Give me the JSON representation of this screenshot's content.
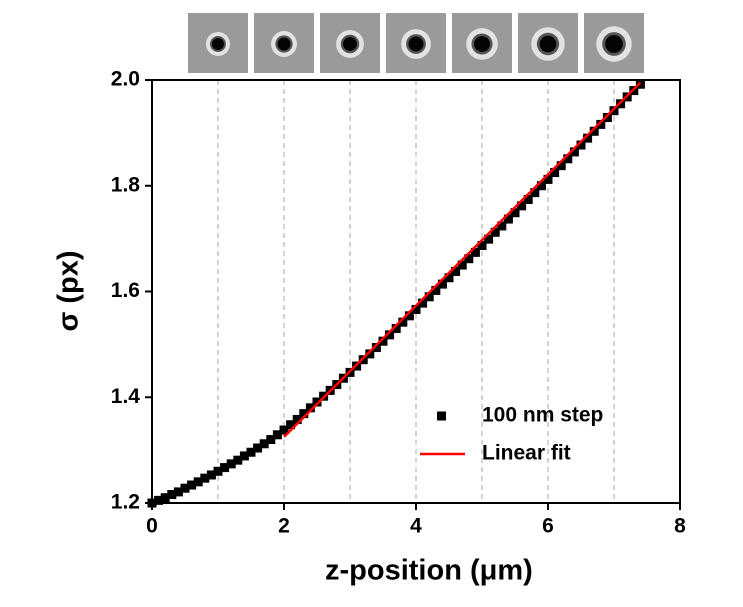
{
  "chart_data": {
    "type": "scatter",
    "xlabel": "z-position (μm)",
    "ylabel": "σ (px)",
    "xlim": [
      0,
      8
    ],
    "ylim": [
      1.2,
      2.0
    ],
    "xticks": [
      0,
      2,
      4,
      6,
      8
    ],
    "yticks": [
      1.2,
      1.4,
      1.6,
      1.8,
      {
        "value": 2.0,
        "label": "2.0"
      }
    ],
    "guide_lines": [
      1,
      2,
      3,
      4,
      5,
      6,
      7
    ],
    "legend": "lower right",
    "series": [
      {
        "name": "100 nm step",
        "type": "scatter",
        "color": "#000000",
        "x": [
          0,
          0.1,
          0.2,
          0.3,
          0.4,
          0.5,
          0.6,
          0.7,
          0.8,
          0.9,
          1.0,
          1.1,
          1.2,
          1.3,
          1.4,
          1.5,
          1.6,
          1.7,
          1.8,
          1.9,
          2.0,
          2.1,
          2.2,
          2.3,
          2.4,
          2.5,
          2.6,
          2.7,
          2.8,
          2.9,
          3.0,
          3.1,
          3.2,
          3.3,
          3.4,
          3.5,
          3.6,
          3.7,
          3.8,
          3.9,
          4.0,
          4.1,
          4.2,
          4.3,
          4.4,
          4.5,
          4.6,
          4.7,
          4.8,
          4.9,
          5.0,
          5.1,
          5.2,
          5.3,
          5.4,
          5.5,
          5.6,
          5.7,
          5.8,
          5.9,
          6.0,
          6.1,
          6.2,
          6.3,
          6.4,
          6.5,
          6.6,
          6.7,
          6.8,
          6.9,
          7.0,
          7.1,
          7.2,
          7.3,
          7.4
        ],
        "values": [
          1.2,
          1.205,
          1.21,
          1.216,
          1.221,
          1.228,
          1.234,
          1.24,
          1.247,
          1.253,
          1.26,
          1.267,
          1.274,
          1.281,
          1.289,
          1.296,
          1.304,
          1.312,
          1.32,
          1.329,
          1.338,
          1.348,
          1.358,
          1.369,
          1.38,
          1.391,
          1.402,
          1.413,
          1.424,
          1.436,
          1.447,
          1.459,
          1.471,
          1.482,
          1.494,
          1.506,
          1.518,
          1.53,
          1.542,
          1.554,
          1.566,
          1.578,
          1.59,
          1.602,
          1.614,
          1.626,
          1.638,
          1.65,
          1.662,
          1.674,
          1.687,
          1.699,
          1.712,
          1.724,
          1.737,
          1.749,
          1.762,
          1.774,
          1.787,
          1.8,
          1.812,
          1.825,
          1.838,
          1.851,
          1.864,
          1.877,
          1.89,
          1.903,
          1.916,
          1.929,
          1.942,
          1.955,
          1.968,
          1.98,
          1.992
        ]
      },
      {
        "name": "Linear fit",
        "type": "line",
        "color": "#ff0000",
        "x": [
          2.0,
          7.4
        ],
        "values": [
          1.325,
          1.995
        ]
      }
    ]
  }
}
